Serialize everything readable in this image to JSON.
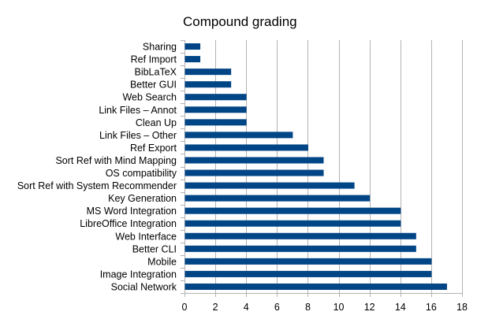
{
  "chart_data": {
    "type": "bar",
    "orientation": "horizontal",
    "title": "Compound grading",
    "xlabel": "",
    "ylabel": "",
    "categories": [
      "Sharing",
      "Ref Import",
      "BibLaTeX",
      "Better GUI",
      "Web Search",
      "Link Files – Annot",
      "Clean Up",
      "Link Files – Other",
      "Ref Export",
      "Sort Ref with Mind Mapping",
      "OS compatibility",
      "Sort Ref with System Recommender",
      "Key Generation",
      "MS Word Integration",
      "LibreOffice Integration",
      "Web Interface",
      "Better CLI",
      "Mobile",
      "Image Integration",
      "Social Network"
    ],
    "values": [
      1,
      1,
      3,
      3,
      4,
      4,
      4,
      7,
      8,
      9,
      9,
      11,
      12,
      14,
      14,
      15,
      15,
      16,
      16,
      17
    ],
    "xlim": [
      0,
      18
    ],
    "xticks": [
      0,
      2,
      4,
      6,
      8,
      10,
      12,
      14,
      16,
      18
    ],
    "grid": "vertical",
    "legend": "none",
    "bar_color": "#004586"
  }
}
